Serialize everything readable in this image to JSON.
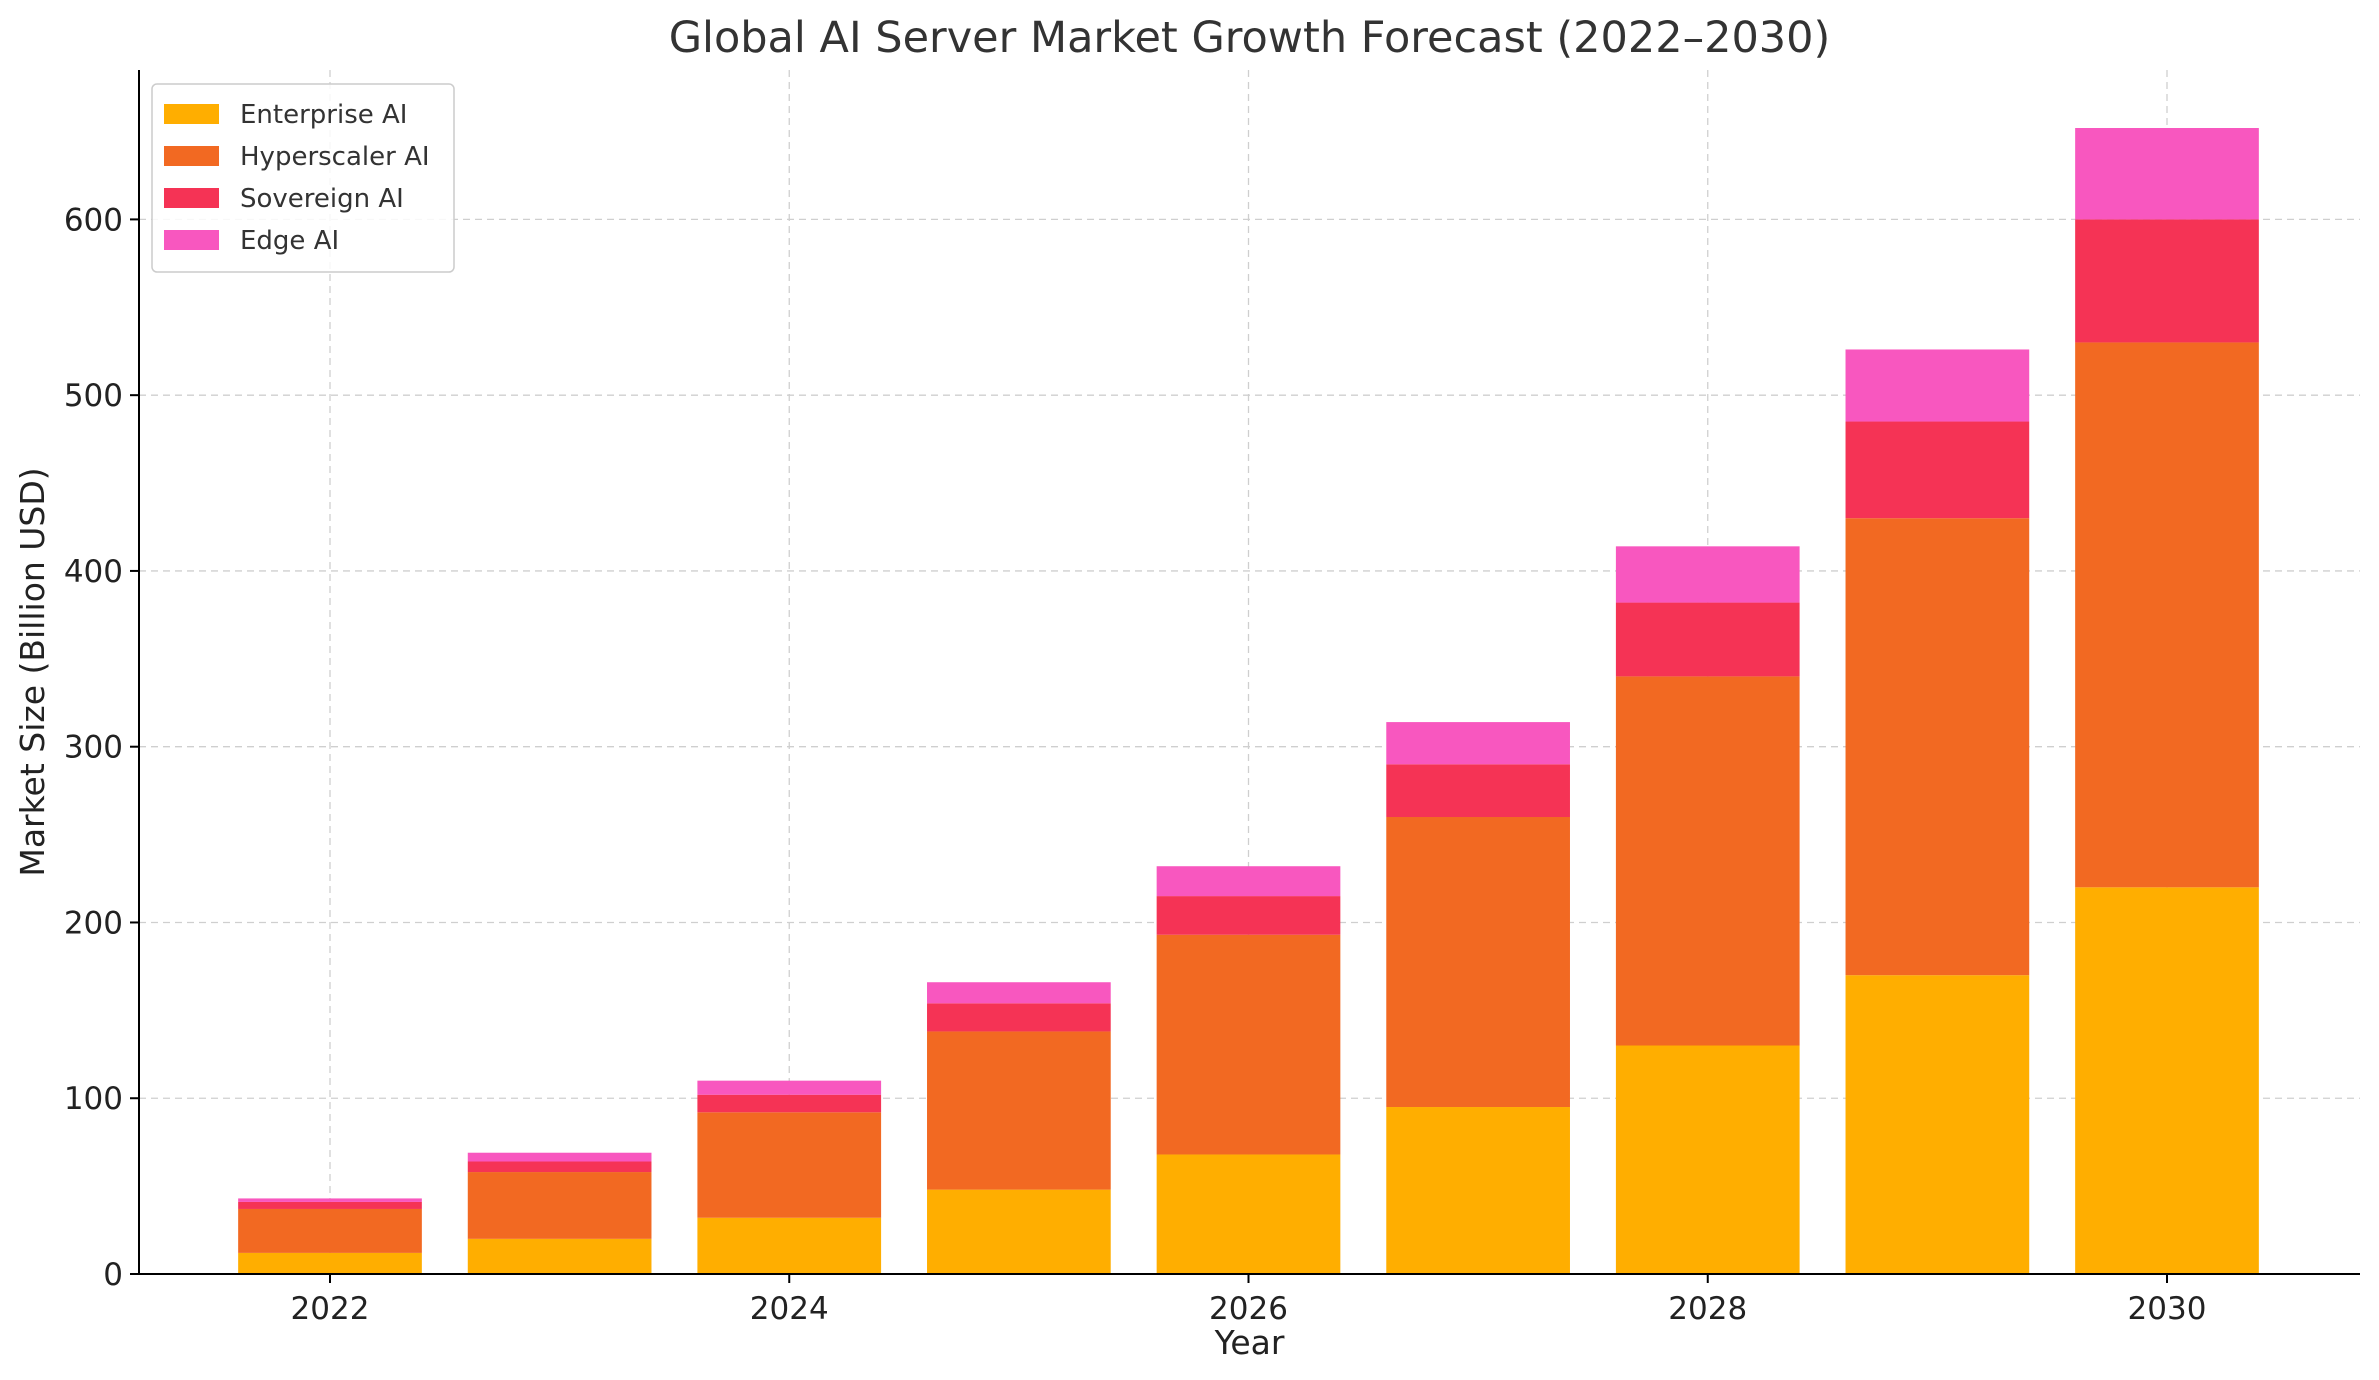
{
  "chart_data": {
    "type": "bar",
    "stacked": true,
    "title": "Global AI Server Market Growth Forecast (2022–2030)",
    "xlabel": "Year",
    "ylabel": "Market Size (Billion USD)",
    "categories": [
      2022,
      2023,
      2024,
      2025,
      2026,
      2027,
      2028,
      2029,
      2030
    ],
    "x_ticks": [
      "2022",
      "2024",
      "2026",
      "2028",
      "2030"
    ],
    "y_ticks": [
      "0",
      "100",
      "200",
      "300",
      "400",
      "500",
      "600"
    ],
    "ylim": [
      0,
      685
    ],
    "grid": true,
    "legend_position": "top-left",
    "series": [
      {
        "name": "Enterprise AI",
        "color": "#FFAE00",
        "values": [
          12,
          20,
          32,
          48,
          68,
          95,
          130,
          170,
          220
        ]
      },
      {
        "name": "Hyperscaler AI",
        "color": "#F26922",
        "values": [
          25,
          38,
          60,
          90,
          125,
          165,
          210,
          260,
          310
        ]
      },
      {
        "name": "Sovereign AI",
        "color": "#F53355",
        "values": [
          4,
          6,
          10,
          16,
          22,
          30,
          42,
          55,
          70
        ]
      },
      {
        "name": "Edge AI",
        "color": "#F857BF",
        "values": [
          2,
          5,
          8,
          12,
          17,
          24,
          32,
          41,
          52
        ]
      }
    ]
  }
}
